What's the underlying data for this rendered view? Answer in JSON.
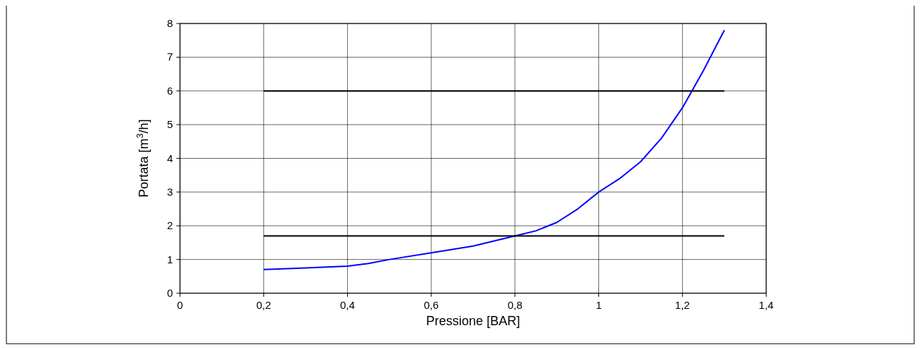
{
  "chart_data": {
    "type": "line",
    "xlabel": "Pressione [BAR]",
    "ylabel": "Portata [m$^{3}$/h]",
    "xlim": [
      0,
      1.4
    ],
    "xticks": [
      0,
      {
        "value": 0.2,
        "label": "0,2"
      },
      {
        "value": 0.4,
        "label": "0,4"
      },
      {
        "value": 0.6,
        "label": "0,6"
      },
      {
        "value": 0.8,
        "label": "0,8"
      },
      1,
      {
        "value": 1.2,
        "label": "1,2"
      },
      {
        "value": 1.4,
        "label": "1,4"
      }
    ],
    "ylim": [
      0,
      8
    ],
    "yticks": [
      0,
      1,
      2,
      3,
      4,
      5,
      6,
      7,
      8
    ],
    "grid": true,
    "marker": "none",
    "line_style": "solid",
    "series": [
      {
        "color": "#0000ff",
        "x": [
          0.2,
          0.3,
          0.4,
          0.45,
          0.5,
          0.6,
          0.7,
          0.8,
          0.85,
          0.9,
          0.95,
          1,
          1.05,
          1.1,
          1.15,
          1.2,
          1.25,
          1.3
        ],
        "values": [
          0.7,
          0.75,
          0.8,
          0.88,
          1.0,
          1.2,
          1.4,
          1.7,
          1.85,
          2.1,
          2.5,
          3,
          3.4,
          3.9,
          4.6,
          5.5,
          6.6,
          7.8
        ]
      },
      {
        "color": "#000000",
        "x": [
          0.2,
          1.3
        ],
        "values": [
          6,
          6
        ]
      },
      {
        "color": "#000000",
        "x": [
          0.2,
          1.3
        ],
        "values": [
          1.7,
          1.7
        ]
      }
    ]
  }
}
